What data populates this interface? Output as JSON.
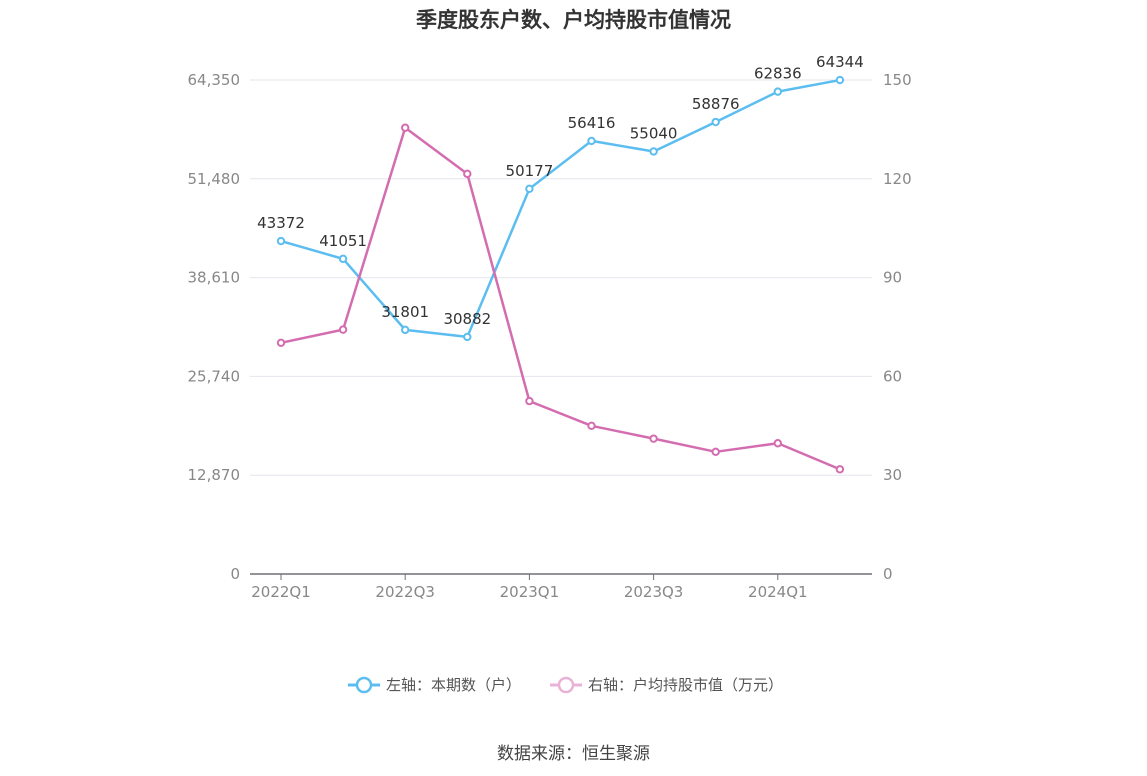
{
  "chart_data": {
    "type": "line",
    "title": "季度股东户数、户均持股市值情况",
    "source": "数据来源：恒生聚源",
    "categories": [
      "2022Q1",
      "2022Q2",
      "2022Q3",
      "2022Q4",
      "2023Q1",
      "2023Q2",
      "2023Q3",
      "2023Q4",
      "2024Q1",
      "2024Q2"
    ],
    "x_tick_labels": [
      "2022Q1",
      "",
      "2022Q3",
      "",
      "2023Q1",
      "",
      "2023Q3",
      "",
      "2024Q1",
      ""
    ],
    "left_axis": {
      "ticks": [
        "0",
        "12,870",
        "25,740",
        "38,610",
        "51,480",
        "64,350"
      ],
      "range": [
        0,
        64350
      ]
    },
    "right_axis": {
      "ticks": [
        "0",
        "30",
        "60",
        "90",
        "120",
        "150"
      ],
      "range": [
        0,
        150
      ]
    },
    "grid": true,
    "legend_position": "bottom",
    "series": [
      {
        "name": "左轴：本期数（户）",
        "axis": "left",
        "color": "#5bbdf0",
        "values": [
          43372,
          41051,
          31801,
          30882,
          50177,
          56416,
          55040,
          58876,
          62836,
          64344
        ],
        "labels": [
          "43372",
          "41051",
          "31801",
          "30882",
          "50177",
          "56416",
          "55040",
          "58876",
          "62836",
          "64344"
        ]
      },
      {
        "name": "右轴：户均持股市值（万元）",
        "axis": "right",
        "color": "#d46db0",
        "values": [
          70.2,
          74.2,
          135.5,
          121.5,
          52.5,
          45.0,
          41.1,
          37.1,
          39.7,
          31.8
        ]
      }
    ]
  }
}
